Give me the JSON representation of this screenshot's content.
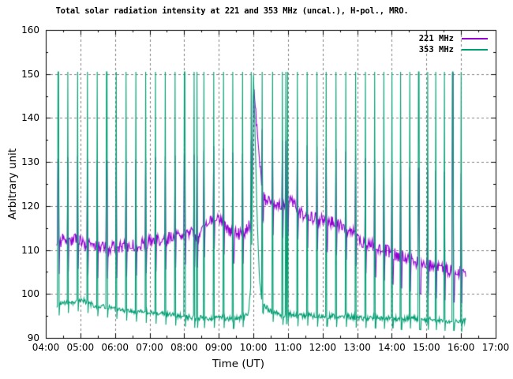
{
  "chart_data": {
    "type": "line",
    "title": "Total solar radiation intensity at 221 and 353 MHz (uncal.), H-pol., MRO.",
    "xlabel": "Time (UT)",
    "ylabel": "Arbitrary unit",
    "xlim": [
      4,
      17
    ],
    "ylim": [
      90,
      160
    ],
    "x_tick_values": [
      4,
      5,
      6,
      7,
      8,
      9,
      10,
      11,
      12,
      13,
      14,
      15,
      16,
      17
    ],
    "x_tick_labels": [
      "04:00",
      "05:00",
      "06:00",
      "07:00",
      "08:00",
      "09:00",
      "10:00",
      "11:00",
      "12:00",
      "13:00",
      "14:00",
      "15:00",
      "16:00",
      "17:00"
    ],
    "y_tick_values": [
      90,
      100,
      110,
      120,
      130,
      140,
      150,
      160
    ],
    "y_tick_labels": [
      "90",
      "100",
      "110",
      "120",
      "130",
      "140",
      "150",
      "160"
    ],
    "grid": {
      "on": true,
      "color": "#7f7f7f",
      "dash": [
        3,
        3
      ]
    },
    "frame_color": "#000000",
    "legend": {
      "position": "top-right-inside",
      "entries": [
        {
          "label": "221 MHz",
          "color": "#9400d3"
        },
        {
          "label": "353 MHz",
          "color": "#009e73"
        }
      ]
    },
    "time_range": [
      4.32,
      16.14
    ],
    "sample_minutes": 1,
    "noise_seed": 77,
    "pulse_default_width_min": 2.2,
    "pulses": [
      {
        "t": 4.37
      },
      {
        "t": 4.65
      },
      {
        "t": 4.93
      },
      {
        "t": 5.21
      },
      {
        "t": 5.49
      },
      {
        "t": 5.77
      },
      {
        "t": 6.05
      },
      {
        "t": 6.33
      },
      {
        "t": 6.61
      },
      {
        "t": 6.9
      },
      {
        "t": 7.18
      },
      {
        "t": 7.46
      },
      {
        "t": 7.74
      },
      {
        "t": 8.02
      },
      {
        "t": 8.3
      },
      {
        "t": 8.38
      },
      {
        "t": 8.58
      },
      {
        "t": 8.86
      },
      {
        "t": 9.14
      },
      {
        "t": 9.42
      },
      {
        "t": 9.7
      },
      {
        "t": 9.94
      },
      {
        "t": 10.27
      },
      {
        "t": 10.56
      },
      {
        "t": 10.84
      },
      {
        "t": 10.95
      },
      {
        "t": 11.0
      },
      {
        "t": 11.28
      },
      {
        "t": 11.56
      },
      {
        "t": 11.84
      },
      {
        "t": 12.12
      },
      {
        "t": 12.4
      },
      {
        "t": 12.68
      },
      {
        "t": 12.96
      },
      {
        "t": 13.24
      },
      {
        "t": 13.52
      },
      {
        "t": 13.78
      },
      {
        "t": 14.02
      },
      {
        "t": 14.27
      },
      {
        "t": 14.53
      },
      {
        "t": 14.8,
        "w": 4.5
      },
      {
        "t": 15.05
      },
      {
        "t": 15.28
      },
      {
        "t": 15.53
      },
      {
        "t": 15.78,
        "w": 4.5,
        "top221": 150.2
      },
      {
        "t": 16.01
      }
    ],
    "series": [
      {
        "name": "221 MHz",
        "color": "#9400d3",
        "noise_amp": 1.3,
        "pulse_top": {
          "scale": 0.5,
          "offset": 75
        },
        "pulse_bottom": {
          "scale": 1,
          "offset": -7
        },
        "baseline": [
          [
            4.32,
            111.0
          ],
          [
            4.5,
            112.5
          ],
          [
            4.7,
            112.0
          ],
          [
            4.85,
            113.0
          ],
          [
            5.0,
            112.5
          ],
          [
            5.15,
            111.5
          ],
          [
            5.35,
            110.8
          ],
          [
            5.6,
            110.5
          ],
          [
            5.9,
            110.5
          ],
          [
            6.2,
            110.8
          ],
          [
            6.5,
            111.0
          ],
          [
            6.8,
            111.5
          ],
          [
            7.1,
            112.0
          ],
          [
            7.4,
            112.5
          ],
          [
            7.7,
            112.8
          ],
          [
            8.0,
            113.5
          ],
          [
            8.2,
            114.5
          ],
          [
            8.35,
            112.5
          ],
          [
            8.55,
            115.0
          ],
          [
            8.75,
            117.0
          ],
          [
            9.0,
            117.5
          ],
          [
            9.15,
            116.0
          ],
          [
            9.3,
            114.5
          ],
          [
            9.5,
            113.8
          ],
          [
            9.65,
            113.5
          ],
          [
            9.8,
            114.5
          ],
          [
            9.92,
            116.0
          ],
          [
            9.97,
            128.0
          ],
          [
            10.01,
            147.5
          ],
          [
            10.06,
            142.5
          ],
          [
            10.12,
            136.0
          ],
          [
            10.18,
            130.0
          ],
          [
            10.25,
            125.0
          ],
          [
            10.35,
            121.5
          ],
          [
            10.5,
            120.5
          ],
          [
            10.75,
            120.0
          ],
          [
            10.95,
            119.5
          ],
          [
            11.08,
            121.8
          ],
          [
            11.2,
            120.5
          ],
          [
            11.35,
            118.5
          ],
          [
            11.55,
            117.5
          ],
          [
            11.9,
            117.0
          ],
          [
            12.2,
            116.5
          ],
          [
            12.5,
            115.5
          ],
          [
            12.75,
            114.5
          ],
          [
            12.95,
            113.5
          ],
          [
            13.1,
            112.0
          ],
          [
            13.35,
            111.5
          ],
          [
            13.65,
            110.5
          ],
          [
            13.95,
            109.5
          ],
          [
            14.25,
            108.5
          ],
          [
            14.55,
            107.5
          ],
          [
            14.85,
            107.0
          ],
          [
            15.15,
            106.3
          ],
          [
            15.45,
            105.7
          ],
          [
            15.75,
            105.2
          ],
          [
            16.05,
            104.8
          ],
          [
            16.14,
            105.2
          ]
        ]
      },
      {
        "name": "353 MHz",
        "color": "#009e73",
        "noise_amp": 0.55,
        "pulse_top": {
          "scale": 0,
          "offset": 150.5
        },
        "pulse_bottom": {
          "scale": 1,
          "offset": -2.3
        },
        "baseline": [
          [
            4.32,
            97.2
          ],
          [
            4.5,
            97.8
          ],
          [
            4.7,
            98.0
          ],
          [
            4.9,
            98.2
          ],
          [
            5.05,
            98.8
          ],
          [
            5.2,
            98.0
          ],
          [
            5.45,
            97.3
          ],
          [
            5.7,
            97.0
          ],
          [
            5.95,
            96.8
          ],
          [
            6.2,
            96.4
          ],
          [
            6.5,
            96.1
          ],
          [
            6.8,
            95.8
          ],
          [
            7.1,
            95.6
          ],
          [
            7.5,
            95.3
          ],
          [
            7.9,
            95.0
          ],
          [
            8.3,
            94.6
          ],
          [
            8.7,
            94.5
          ],
          [
            9.0,
            94.7
          ],
          [
            9.3,
            94.4
          ],
          [
            9.6,
            94.5
          ],
          [
            9.85,
            95.2
          ],
          [
            9.94,
            103.0
          ],
          [
            10.0,
            150.2
          ],
          [
            10.04,
            139.0
          ],
          [
            10.08,
            126.0
          ],
          [
            10.13,
            112.0
          ],
          [
            10.18,
            103.0
          ],
          [
            10.24,
            98.5
          ],
          [
            10.35,
            97.0
          ],
          [
            10.55,
            96.0
          ],
          [
            10.8,
            95.2
          ],
          [
            11.05,
            95.5
          ],
          [
            11.3,
            94.9
          ],
          [
            11.6,
            95.1
          ],
          [
            11.9,
            94.8
          ],
          [
            12.2,
            95.0
          ],
          [
            12.5,
            94.7
          ],
          [
            12.8,
            94.9
          ],
          [
            13.1,
            94.4
          ],
          [
            13.4,
            94.7
          ],
          [
            13.7,
            94.3
          ],
          [
            14.0,
            94.6
          ],
          [
            14.3,
            94.2
          ],
          [
            14.6,
            94.5
          ],
          [
            14.9,
            94.1
          ],
          [
            15.2,
            94.2
          ],
          [
            15.5,
            93.9
          ],
          [
            15.8,
            94.0
          ],
          [
            16.0,
            93.6
          ],
          [
            16.14,
            93.9
          ]
        ]
      }
    ]
  }
}
